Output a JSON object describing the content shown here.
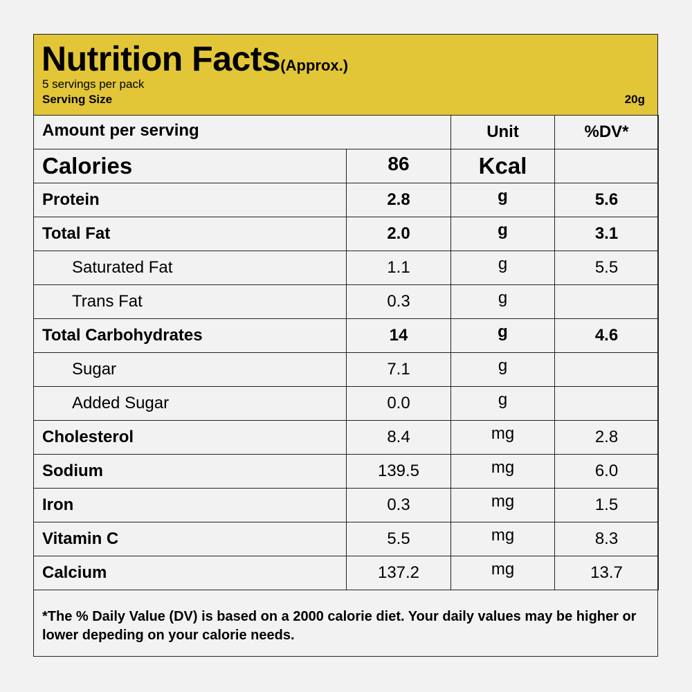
{
  "header": {
    "title": "Nutrition Facts",
    "title_suffix": "(Approx.)",
    "servings_per_pack": "5 servings per pack",
    "serving_size_label": "Serving Size",
    "serving_size_value": "20g",
    "background_color": "#e3c637"
  },
  "columns": {
    "amount_label": "Amount per serving",
    "unit_label": "Unit",
    "dv_label": "%DV*"
  },
  "calories": {
    "label": "Calories",
    "value": "86",
    "unit": "Kcal",
    "dv": ""
  },
  "rows": [
    {
      "name": "Protein",
      "value": "2.8",
      "unit": "g",
      "dv": "5.6"
    },
    {
      "name": "Total Fat",
      "value": "2.0",
      "unit": "g",
      "dv": "3.1"
    },
    {
      "name": "Saturated Fat",
      "value": "1.1",
      "unit": "g",
      "dv": "5.5"
    },
    {
      "name": "Trans Fat",
      "value": "0.3",
      "unit": "g",
      "dv": ""
    },
    {
      "name": "Total Carbohydrates",
      "value": "14",
      "unit": "g",
      "dv": "4.6"
    },
    {
      "name": "Sugar",
      "value": "7.1",
      "unit": "g",
      "dv": ""
    },
    {
      "name": "Added Sugar",
      "value": "0.0",
      "unit": "g",
      "dv": ""
    },
    {
      "name": "Cholesterol",
      "value": "8.4",
      "unit": "mg",
      "dv": "2.8"
    },
    {
      "name": "Sodium",
      "value": "139.5",
      "unit": "mg",
      "dv": "6.0"
    },
    {
      "name": "Iron",
      "value": "0.3",
      "unit": "mg",
      "dv": "1.5"
    },
    {
      "name": "Vitamin C",
      "value": "5.5",
      "unit": "mg",
      "dv": "8.3"
    },
    {
      "name": "Calcium",
      "value": "137.2",
      "unit": "mg",
      "dv": "13.7"
    }
  ],
  "footnote": "*The % Daily Value (DV) is based on a 2000 calorie diet. Your daily values may be higher or lower depeding on your calorie needs."
}
